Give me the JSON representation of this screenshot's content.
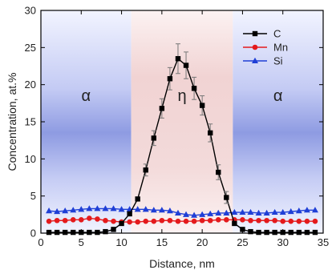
{
  "chart_data": {
    "type": "line",
    "title": "",
    "xlabel": "Distance, nm",
    "ylabel": "Concentration, at.%",
    "xlim": [
      0,
      35
    ],
    "ylim": [
      0,
      30
    ],
    "xticks": [
      0,
      5,
      10,
      15,
      20,
      25,
      30,
      35
    ],
    "yticks": [
      0,
      5,
      10,
      15,
      20,
      25,
      30
    ],
    "grid": false,
    "legend_position": "top-right",
    "regions": [
      {
        "label": "α",
        "x_from": 0,
        "x_to": 11.2,
        "color": "#7f8fe0"
      },
      {
        "label": "η",
        "x_from": 11.2,
        "x_to": 23.8,
        "color": "#f3cfcf"
      },
      {
        "label": "α",
        "x_from": 23.8,
        "x_to": 35,
        "color": "#7f8fe0"
      }
    ],
    "series": [
      {
        "name": "C",
        "color": "#000000",
        "marker": "square",
        "x": [
          1,
          2,
          3,
          4,
          5,
          6,
          7,
          8,
          9,
          10,
          11,
          12,
          13,
          14,
          15,
          16,
          17,
          18,
          19,
          20,
          21,
          22,
          23,
          24,
          25,
          26,
          27,
          28,
          29,
          30,
          31,
          32,
          33,
          34
        ],
        "y": [
          0.1,
          0.1,
          0.1,
          0.1,
          0.1,
          0.1,
          0.1,
          0.2,
          0.5,
          1.3,
          2.6,
          4.6,
          8.5,
          12.8,
          16.8,
          20.8,
          23.5,
          22.6,
          19.5,
          17.2,
          13.5,
          8.2,
          4.8,
          1.3,
          0.5,
          0.2,
          0.1,
          0.1,
          0.1,
          0.1,
          0.1,
          0.1,
          0.1,
          0.1
        ],
        "error": [
          0,
          0,
          0,
          0,
          0,
          0,
          0,
          0,
          0,
          0,
          0,
          0,
          0.8,
          1.0,
          1.3,
          1.5,
          2.0,
          1.8,
          1.5,
          1.3,
          1.2,
          1.0,
          0.8,
          0,
          0,
          0,
          0,
          0,
          0,
          0,
          0,
          0,
          0,
          0
        ]
      },
      {
        "name": "Mn",
        "color": "#e41a1c",
        "marker": "circle",
        "x": [
          1,
          2,
          3,
          4,
          5,
          6,
          7,
          8,
          9,
          10,
          11,
          12,
          13,
          14,
          15,
          16,
          17,
          18,
          19,
          20,
          21,
          22,
          23,
          24,
          25,
          26,
          27,
          28,
          29,
          30,
          31,
          32,
          33,
          34
        ],
        "y": [
          1.6,
          1.7,
          1.7,
          1.8,
          1.8,
          2.0,
          1.9,
          1.7,
          1.6,
          1.5,
          1.5,
          1.5,
          1.6,
          1.6,
          1.7,
          1.7,
          1.6,
          1.6,
          1.6,
          1.7,
          1.7,
          1.8,
          1.8,
          1.8,
          1.8,
          1.7,
          1.7,
          1.7,
          1.7,
          1.6,
          1.6,
          1.6,
          1.6,
          1.6
        ]
      },
      {
        "name": "Si",
        "color": "#1f3fd6",
        "marker": "triangle",
        "x": [
          1,
          2,
          3,
          4,
          5,
          6,
          7,
          8,
          9,
          10,
          11,
          12,
          13,
          14,
          15,
          16,
          17,
          18,
          19,
          20,
          21,
          22,
          23,
          24,
          25,
          26,
          27,
          28,
          29,
          30,
          31,
          32,
          33,
          34
        ],
        "y": [
          3.0,
          2.9,
          3.0,
          3.1,
          3.2,
          3.3,
          3.3,
          3.3,
          3.3,
          3.2,
          3.2,
          3.2,
          3.2,
          3.1,
          3.1,
          3.0,
          2.7,
          2.5,
          2.4,
          2.5,
          2.6,
          2.7,
          2.7,
          2.8,
          2.8,
          2.8,
          2.7,
          2.7,
          2.8,
          2.8,
          2.9,
          3.0,
          3.1,
          3.1
        ]
      }
    ]
  }
}
